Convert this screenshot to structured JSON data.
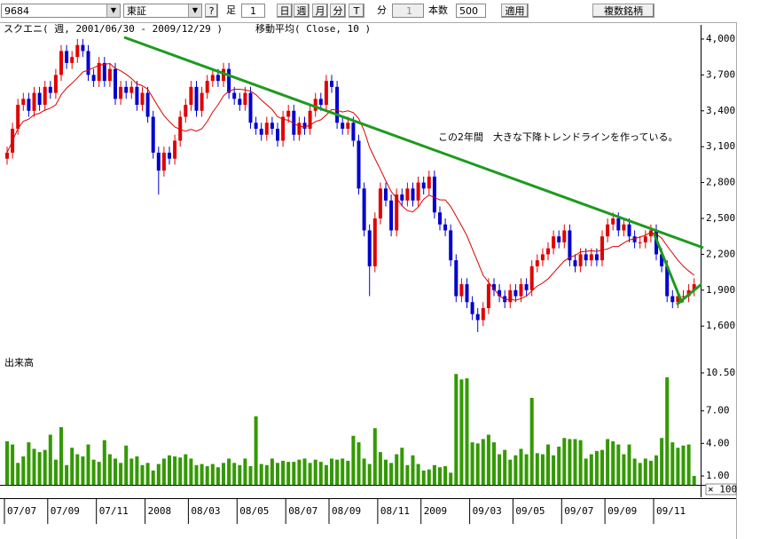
{
  "toolbar": {
    "symbol": "9684",
    "market": "東証",
    "help": "?",
    "bar_label": "足",
    "bar_count": "1",
    "buttons": [
      "日",
      "週",
      "月",
      "分",
      "T"
    ],
    "minute_label": "分",
    "minute_value": "1",
    "count_label": "本数",
    "count_value": "500",
    "apply": "適用",
    "multi": "複数銘柄"
  },
  "chart_data": {
    "type": "candlestick",
    "title": "スクエニ( 週, 2001/06/30 - 2009/12/29 )",
    "subtitle": "移動平均( Close, 10 )",
    "annotation": "この2年間　大きな下降トレンドラインを作っている。",
    "up_color": "#e00000",
    "down_color": "#0000d0",
    "categories": [
      "07/07",
      null,
      null,
      null,
      null,
      null,
      null,
      null,
      "07/09",
      null,
      null,
      null,
      null,
      null,
      null,
      null,
      null,
      "07/11",
      null,
      null,
      null,
      null,
      null,
      null,
      null,
      null,
      "2008",
      null,
      null,
      null,
      null,
      null,
      null,
      null,
      "08/03",
      null,
      null,
      null,
      null,
      null,
      null,
      null,
      null,
      "08/05",
      null,
      null,
      null,
      null,
      null,
      null,
      null,
      null,
      "08/07",
      null,
      null,
      null,
      null,
      null,
      null,
      null,
      "08/09",
      null,
      null,
      null,
      null,
      null,
      null,
      null,
      null,
      "08/11",
      null,
      null,
      null,
      null,
      null,
      null,
      null,
      "2009",
      null,
      null,
      null,
      null,
      null,
      null,
      null,
      null,
      "09/03",
      null,
      null,
      null,
      null,
      null,
      null,
      null,
      "09/05",
      null,
      null,
      null,
      null,
      null,
      null,
      null,
      null,
      "09/07",
      null,
      null,
      null,
      null,
      null,
      null,
      null,
      "09/09",
      null,
      null,
      null,
      null,
      null,
      null,
      null,
      null,
      "09/11",
      null,
      null,
      null,
      null,
      null,
      null,
      null
    ],
    "open": [
      3000,
      3050,
      3250,
      3450,
      3500,
      3400,
      3550,
      3450,
      3600,
      3550,
      3700,
      3900,
      3800,
      3850,
      3950,
      3900,
      3700,
      3650,
      3800,
      3650,
      3750,
      3500,
      3600,
      3550,
      3600,
      3450,
      3550,
      3350,
      3050,
      2900,
      3050,
      3000,
      3150,
      3350,
      3450,
      3600,
      3400,
      3550,
      3650,
      3700,
      3650,
      3750,
      3550,
      3500,
      3450,
      3550,
      3300,
      3250,
      3200,
      3300,
      3250,
      3150,
      3350,
      3400,
      3200,
      3300,
      3250,
      3400,
      3500,
      3450,
      3650,
      3600,
      3300,
      3250,
      3300,
      3150,
      2750,
      2400,
      2100,
      2500,
      2750,
      2650,
      2400,
      2700,
      2650,
      2750,
      2650,
      2800,
      2750,
      2850,
      2550,
      2450,
      2400,
      2150,
      1850,
      1950,
      1800,
      1700,
      1650,
      1750,
      1950,
      1900,
      1850,
      1800,
      1900,
      1850,
      1950,
      1900,
      2100,
      2150,
      2200,
      2250,
      2350,
      2300,
      2400,
      2150,
      2100,
      2200,
      2150,
      2200,
      2150,
      2350,
      2450,
      2500,
      2400,
      2450,
      2350,
      2300,
      2300,
      2350,
      2400,
      2200,
      2100,
      1850,
      1800,
      1850,
      1850,
      1900
    ],
    "high": [
      3100,
      3300,
      3500,
      3550,
      3550,
      3600,
      3600,
      3650,
      3650,
      3750,
      3950,
      3950,
      3900,
      4000,
      4000,
      3950,
      3750,
      3850,
      3850,
      3800,
      3800,
      3650,
      3650,
      3650,
      3650,
      3600,
      3600,
      3400,
      3100,
      3100,
      3100,
      3200,
      3400,
      3500,
      3650,
      3650,
      3600,
      3700,
      3750,
      3750,
      3800,
      3800,
      3600,
      3550,
      3600,
      3600,
      3350,
      3300,
      3350,
      3350,
      3300,
      3400,
      3450,
      3450,
      3350,
      3350,
      3450,
      3550,
      3550,
      3700,
      3700,
      3650,
      3350,
      3350,
      3350,
      3200,
      2800,
      2450,
      2550,
      2800,
      2800,
      2700,
      2750,
      2750,
      2800,
      2800,
      2850,
      2850,
      2900,
      2900,
      2600,
      2500,
      2450,
      2200,
      2000,
      2000,
      1850,
      1750,
      1800,
      2000,
      2000,
      1950,
      1900,
      1950,
      1950,
      2000,
      2000,
      2150,
      2200,
      2250,
      2300,
      2400,
      2400,
      2450,
      2450,
      2200,
      2250,
      2250,
      2250,
      2250,
      2400,
      2500,
      2550,
      2550,
      2500,
      2500,
      2400,
      2350,
      2400,
      2450,
      2450,
      2250,
      2150,
      1900,
      1900,
      1900,
      1950,
      2000
    ],
    "low": [
      2950,
      3000,
      3200,
      3400,
      3350,
      3350,
      3400,
      3400,
      3500,
      3500,
      3650,
      3750,
      3750,
      3800,
      3850,
      3650,
      3600,
      3600,
      3600,
      3600,
      3450,
      3450,
      3500,
      3500,
      3400,
      3400,
      3300,
      3000,
      2700,
      2850,
      2950,
      2950,
      3100,
      3300,
      3400,
      3350,
      3350,
      3500,
      3600,
      3600,
      3600,
      3500,
      3450,
      3400,
      3400,
      3250,
      3200,
      3150,
      3150,
      3200,
      3100,
      3100,
      3300,
      3150,
      3150,
      3200,
      3200,
      3350,
      3400,
      3400,
      3550,
      3250,
      3200,
      3200,
      3100,
      2700,
      2350,
      1850,
      2050,
      2450,
      2600,
      2350,
      2350,
      2600,
      2600,
      2600,
      2600,
      2700,
      2700,
      2500,
      2400,
      2350,
      2100,
      1800,
      1800,
      1750,
      1650,
      1550,
      1600,
      1700,
      1850,
      1800,
      1750,
      1750,
      1800,
      1800,
      1850,
      1850,
      2050,
      2100,
      2150,
      2200,
      2250,
      2250,
      2100,
      2050,
      2050,
      2100,
      2100,
      2100,
      2100,
      2300,
      2400,
      2350,
      2350,
      2300,
      2250,
      2250,
      2250,
      2300,
      2150,
      2050,
      1800,
      1750,
      1750,
      1800,
      1800,
      1850
    ],
    "close": [
      3050,
      3250,
      3450,
      3500,
      3400,
      3550,
      3450,
      3600,
      3550,
      3700,
      3900,
      3800,
      3850,
      3950,
      3900,
      3700,
      3650,
      3800,
      3650,
      3750,
      3500,
      3600,
      3550,
      3600,
      3450,
      3550,
      3350,
      3050,
      2900,
      3050,
      3000,
      3150,
      3350,
      3450,
      3600,
      3400,
      3550,
      3650,
      3700,
      3650,
      3750,
      3550,
      3500,
      3450,
      3550,
      3300,
      3250,
      3200,
      3300,
      3250,
      3150,
      3350,
      3400,
      3200,
      3300,
      3250,
      3400,
      3500,
      3450,
      3650,
      3600,
      3300,
      3250,
      3300,
      3150,
      2750,
      2400,
      2100,
      2500,
      2750,
      2650,
      2400,
      2700,
      2650,
      2750,
      2650,
      2800,
      2750,
      2850,
      2550,
      2450,
      2400,
      2150,
      1850,
      1950,
      1800,
      1700,
      1650,
      1750,
      1950,
      1900,
      1850,
      1800,
      1900,
      1850,
      1950,
      1900,
      2100,
      2150,
      2200,
      2250,
      2350,
      2300,
      2400,
      2150,
      2100,
      2200,
      2150,
      2200,
      2150,
      2350,
      2450,
      2500,
      2400,
      2450,
      2350,
      2300,
      2300,
      2350,
      2400,
      2200,
      2100,
      1850,
      1800,
      1850,
      1850,
      1900,
      1950
    ],
    "ma": {
      "color": "#dd0000",
      "values": [
        3050,
        3150,
        3250,
        3313,
        3330,
        3367,
        3379,
        3406,
        3422,
        3450,
        3535,
        3590,
        3630,
        3675,
        3725,
        3740,
        3760,
        3780,
        3790,
        3795,
        3755,
        3735,
        3705,
        3670,
        3625,
        3610,
        3580,
        3505,
        3430,
        3360,
        3310,
        3265,
        3245,
        3230,
        3245,
        3230,
        3250,
        3310,
        3390,
        3450,
        3525,
        3565,
        3580,
        3580,
        3575,
        3565,
        3535,
        3490,
        3450,
        3410,
        3350,
        3330,
        3320,
        3295,
        3270,
        3265,
        3280,
        3310,
        3325,
        3365,
        3410,
        3405,
        3390,
        3400,
        3385,
        3335,
        3235,
        3095,
        3000,
        2910,
        2815,
        2725,
        2670,
        2605,
        2565,
        2555,
        2595,
        2660,
        2695,
        2675,
        2655,
        2655,
        2600,
        2520,
        2440,
        2355,
        2245,
        2135,
        2025,
        1965,
        1910,
        1855,
        1820,
        1825,
        1815,
        1830,
        1850,
        1895,
        1935,
        1960,
        1995,
        2045,
        2095,
        2145,
        2175,
        2190,
        2220,
        2225,
        2230,
        2225,
        2235,
        2245,
        2265,
        2265,
        2295,
        2320,
        2330,
        2345,
        2360,
        2385,
        2370,
        2335,
        2270,
        2210,
        2150,
        2100,
        2060,
        2025
      ]
    },
    "ylim": [
      1450,
      4100
    ],
    "yticks": [
      {
        "value": 1600,
        "label": "1,600"
      },
      {
        "value": 1900,
        "label": "1,900"
      },
      {
        "value": 2200,
        "label": "2,200"
      },
      {
        "value": 2500,
        "label": "2,500"
      },
      {
        "value": 2800,
        "label": "2,800"
      },
      {
        "value": 3100,
        "label": "3,100"
      },
      {
        "value": 3400,
        "label": "3,400"
      },
      {
        "value": 3700,
        "label": "3,700"
      },
      {
        "value": 4000,
        "label": "4,000"
      }
    ],
    "volume": {
      "label": "出来高",
      "unit": "× 100",
      "color": "#339900",
      "values": [
        4.2,
        3.9,
        2.2,
        2.8,
        4.1,
        3.5,
        3.2,
        3.4,
        4.8,
        2.5,
        5.5,
        2.0,
        3.6,
        3.0,
        2.8,
        3.9,
        2.5,
        2.3,
        4.3,
        3.0,
        2.6,
        2.2,
        3.8,
        2.6,
        2.8,
        2.0,
        2.2,
        1.5,
        2.1,
        2.6,
        2.9,
        2.8,
        2.7,
        3.0,
        2.6,
        2.0,
        2.1,
        1.9,
        2.1,
        1.8,
        2.2,
        2.6,
        2.2,
        2.0,
        2.6,
        1.9,
        6.5,
        2.1,
        2.0,
        2.6,
        2.2,
        2.4,
        2.3,
        2.3,
        2.5,
        2.6,
        2.2,
        2.5,
        2.3,
        2.0,
        2.6,
        2.5,
        2.6,
        2.4,
        4.7,
        4.1,
        2.6,
        2.1,
        5.4,
        3.2,
        2.5,
        2.2,
        3.0,
        3.6,
        2.0,
        2.9,
        2.1,
        1.5,
        1.6,
        2.0,
        1.8,
        1.9,
        1.3,
        10.4,
        9.9,
        10.0,
        4.1,
        4.0,
        4.4,
        4.8,
        4.1,
        3.0,
        3.4,
        2.5,
        2.9,
        3.5,
        3.0,
        8.2,
        3.1,
        3.0,
        3.9,
        2.9,
        3.7,
        4.5,
        4.4,
        4.4,
        4.3,
        2.6,
        3.0,
        3.3,
        3.4,
        4.4,
        4.2,
        3.9,
        3.0,
        3.9,
        2.6,
        2.2,
        2.6,
        2.4,
        2.9,
        4.5,
        10.1,
        4.1,
        3.6,
        3.8,
        3.9,
        1.0
      ],
      "ylim": [
        0,
        11.7
      ],
      "yticks": [
        {
          "value": 1,
          "label": "1.00"
        },
        {
          "value": 4,
          "label": "4.00"
        },
        {
          "value": 7,
          "label": "7.00"
        },
        {
          "value": 10.5,
          "label": "10.50"
        }
      ]
    }
  }
}
